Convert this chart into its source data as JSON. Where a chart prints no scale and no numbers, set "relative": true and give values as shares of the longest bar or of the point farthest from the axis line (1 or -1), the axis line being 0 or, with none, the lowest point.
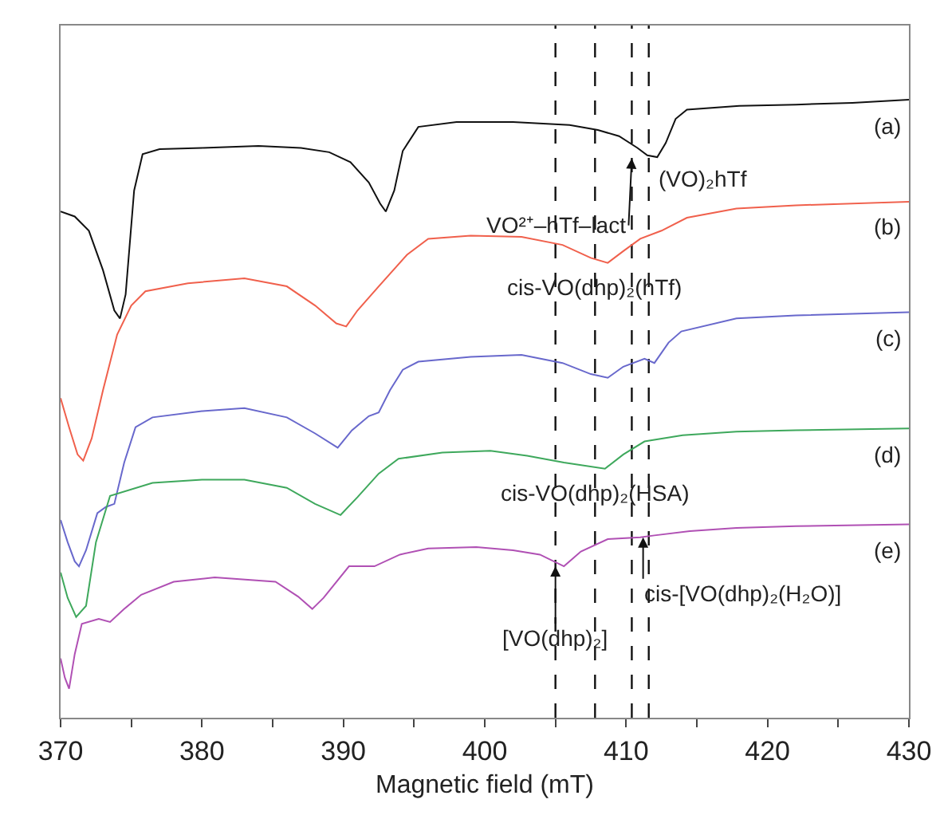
{
  "chart_data": {
    "type": "line",
    "xlabel": "Magnetic field (mT)",
    "relative": true,
    "tick_labels": "x",
    "legend": false,
    "xlim": [
      370,
      430
    ],
    "xticks": [
      370,
      {
        "value": 375,
        "label": null
      },
      380,
      {
        "value": 385,
        "label": null
      },
      390,
      {
        "value": 395,
        "label": null
      },
      400,
      {
        "value": 405,
        "label": null
      },
      410,
      {
        "value": 415,
        "label": null
      },
      420,
      {
        "value": 425,
        "label": null
      },
      430
    ],
    "series": [
      {
        "name": "(a)",
        "color": "#111111",
        "x": [
          370,
          371,
          372,
          373,
          373.8,
          374.2,
          374.6,
          375.2,
          375.8,
          377,
          380,
          384,
          387,
          389,
          390.5,
          391.8,
          392.6,
          393,
          393.6,
          394.2,
          395.3,
          398,
          402,
          406,
          408,
          409.5,
          410.8,
          411.5,
          412.2,
          412.8,
          413.5,
          414.3,
          418,
          422,
          426,
          430
        ],
        "values": [
          0.819,
          0.811,
          0.788,
          0.724,
          0.659,
          0.646,
          0.685,
          0.853,
          0.912,
          0.92,
          0.922,
          0.925,
          0.922,
          0.915,
          0.899,
          0.866,
          0.832,
          0.819,
          0.853,
          0.917,
          0.956,
          0.964,
          0.964,
          0.959,
          0.951,
          0.941,
          0.922,
          0.91,
          0.907,
          0.93,
          0.969,
          0.984,
          0.99,
          0.992,
          0.995,
          1.0
        ]
      },
      {
        "name": "(b)",
        "color": "#f0604c",
        "x": [
          370,
          370.6,
          371.2,
          371.6,
          372.2,
          373,
          374,
          375,
          376,
          379,
          383,
          386,
          388,
          389.5,
          390.2,
          391,
          392.5,
          394.5,
          396,
          399,
          402.6,
          405.5,
          407.5,
          408.7,
          409.8,
          411,
          412.5,
          414.3,
          417.8,
          422,
          430
        ],
        "values": [
          0.517,
          0.47,
          0.426,
          0.416,
          0.452,
          0.53,
          0.62,
          0.667,
          0.69,
          0.703,
          0.711,
          0.698,
          0.667,
          0.638,
          0.633,
          0.659,
          0.698,
          0.749,
          0.775,
          0.78,
          0.778,
          0.765,
          0.744,
          0.736,
          0.755,
          0.775,
          0.788,
          0.809,
          0.824,
          0.829,
          0.835
        ]
      },
      {
        "name": "(c)",
        "color": "#6868cc",
        "x": [
          370,
          370.5,
          371,
          371.3,
          371.8,
          372.6,
          373.2,
          373.8,
          374.5,
          375.3,
          376.5,
          380,
          383,
          386,
          388,
          389.6,
          390.6,
          391.8,
          392.5,
          393.3,
          394.2,
          395.3,
          399,
          402.6,
          405.5,
          407.5,
          408.7,
          409.8,
          411.3,
          412,
          413,
          413.9,
          417.8,
          422,
          430
        ],
        "values": [
          0.32,
          0.284,
          0.253,
          0.245,
          0.271,
          0.331,
          0.341,
          0.346,
          0.413,
          0.47,
          0.486,
          0.496,
          0.501,
          0.486,
          0.46,
          0.437,
          0.465,
          0.488,
          0.494,
          0.53,
          0.563,
          0.576,
          0.584,
          0.587,
          0.574,
          0.556,
          0.55,
          0.568,
          0.581,
          0.574,
          0.607,
          0.625,
          0.646,
          0.651,
          0.656
        ]
      },
      {
        "name": "(d)",
        "color": "#3ea85c",
        "x": [
          370,
          370.5,
          371.1,
          371.8,
          372.5,
          373.5,
          376.5,
          380,
          383,
          386,
          388,
          389.8,
          391,
          392.5,
          393.9,
          397,
          400.4,
          403,
          405.6,
          408.5,
          409.8,
          411.3,
          414,
          417.8,
          422,
          430
        ],
        "values": [
          0.235,
          0.194,
          0.163,
          0.181,
          0.284,
          0.359,
          0.38,
          0.385,
          0.385,
          0.372,
          0.346,
          0.328,
          0.357,
          0.395,
          0.419,
          0.429,
          0.432,
          0.424,
          0.413,
          0.403,
          0.426,
          0.447,
          0.457,
          0.463,
          0.465,
          0.468
        ]
      },
      {
        "name": "(e)",
        "color": "#b050b4",
        "x": [
          370,
          370.3,
          370.6,
          371,
          371.5,
          372.7,
          373.5,
          374.5,
          375.7,
          378,
          380.9,
          385.2,
          386.8,
          387.8,
          388.6,
          390.4,
          392.2,
          394,
          396,
          399.4,
          402,
          403.9,
          405.6,
          406.8,
          408.7,
          411,
          412,
          414.5,
          417.8,
          422,
          430
        ],
        "values": [
          0.096,
          0.065,
          0.047,
          0.103,
          0.152,
          0.16,
          0.155,
          0.176,
          0.199,
          0.22,
          0.227,
          0.22,
          0.196,
          0.176,
          0.194,
          0.245,
          0.245,
          0.264,
          0.274,
          0.276,
          0.271,
          0.264,
          0.245,
          0.269,
          0.289,
          0.292,
          0.295,
          0.302,
          0.307,
          0.31,
          0.313
        ]
      }
    ],
    "ref_lines": [
      {
        "axis": "x",
        "value": 405.0,
        "line_style": "dashed",
        "color": "#111111"
      },
      {
        "axis": "x",
        "value": 407.8,
        "line_style": "dashed",
        "color": "#111111"
      },
      {
        "axis": "x",
        "value": 410.4,
        "line_style": "dashed",
        "color": "#111111"
      },
      {
        "axis": "x",
        "value": 411.6,
        "line_style": "dashed",
        "color": "#111111"
      }
    ],
    "annotations": [
      {
        "text": "VO²⁺–hTf–lact",
        "x": 410.4,
        "y": 0.905
      },
      {
        "text": "(VO)₂hTf",
        "x": 411.9,
        "y": 0.907
      },
      {
        "text": "cis-VO(dhp)₂(hTf)",
        "x": 407.8,
        "y": 0.736
      },
      {
        "text": "cis-VO(dhp)₂(HSA)",
        "x": 407.8,
        "y": 0.403
      },
      {
        "text": "[VO(dhp)₂]",
        "x": 405.0,
        "y": 0.245
      },
      {
        "text": "cis-[VO(dhp)₂(H₂O)]",
        "x": 411.2,
        "y": 0.292
      }
    ]
  }
}
